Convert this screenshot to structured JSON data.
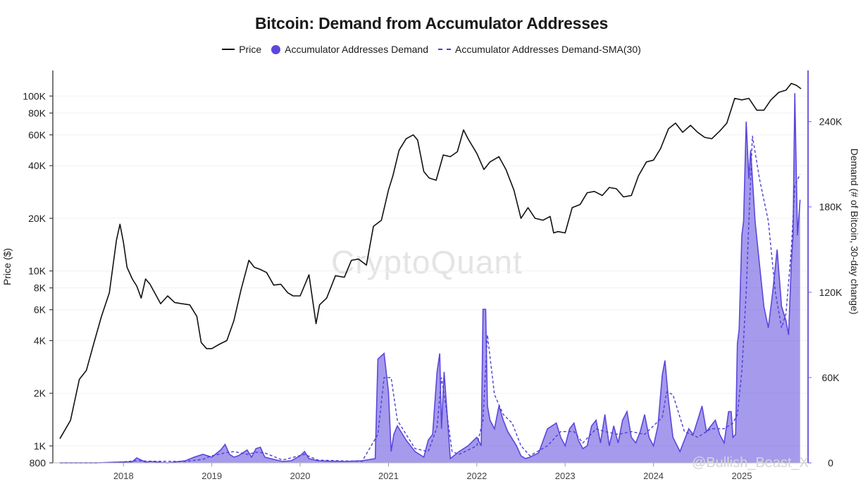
{
  "chart_data": {
    "type": "line",
    "title": "Bitcoin: Demand from Accumulator Addresses",
    "legend": [
      {
        "label": "Price",
        "style": "line",
        "color": "#111111"
      },
      {
        "label": "Accumulator Addresses Demand",
        "style": "area",
        "color": "#5b47dc"
      },
      {
        "label": "Accumulator Addresses Demand-SMA(30)",
        "style": "dashed",
        "color": "#4b3fd6"
      }
    ],
    "legend_position": "top-center",
    "ylabel_left": "Price ($)",
    "ylabel_right": "Demand (# of Bitcoin, 30-day change)",
    "y_left_scale": "log",
    "y_left_ticks": [
      {
        "v": 800,
        "label": "800"
      },
      {
        "v": 1000,
        "label": "1K"
      },
      {
        "v": 2000,
        "label": "2K"
      },
      {
        "v": 4000,
        "label": "4K"
      },
      {
        "v": 6000,
        "label": "6K"
      },
      {
        "v": 8000,
        "label": "8K"
      },
      {
        "v": 10000,
        "label": "10K"
      },
      {
        "v": 20000,
        "label": "20K"
      },
      {
        "v": 40000,
        "label": "40K"
      },
      {
        "v": 60000,
        "label": "60K"
      },
      {
        "v": 80000,
        "label": "80K"
      },
      {
        "v": 100000,
        "label": "100K"
      }
    ],
    "y_left_range": [
      800,
      140000
    ],
    "y_right_ticks": [
      {
        "v": 0,
        "label": "0"
      },
      {
        "v": 60000,
        "label": "60K"
      },
      {
        "v": 120000,
        "label": "120K"
      },
      {
        "v": 180000,
        "label": "180K"
      },
      {
        "v": 240000,
        "label": "240K"
      }
    ],
    "y_right_range": [
      0,
      276000
    ],
    "x_range": [
      2017.2,
      2025.75
    ],
    "x_ticks": [
      {
        "v": 2018,
        "label": "2018"
      },
      {
        "v": 2019,
        "label": "2019"
      },
      {
        "v": 2020,
        "label": "2020"
      },
      {
        "v": 2021,
        "label": "2021"
      },
      {
        "v": 2022,
        "label": "2022"
      },
      {
        "v": 2023,
        "label": "2023"
      },
      {
        "v": 2024,
        "label": "2024"
      },
      {
        "v": 2025,
        "label": "2025"
      }
    ],
    "grid": "horizontal",
    "series": [
      {
        "name": "Price",
        "x": [
          2017.28,
          2017.4,
          2017.5,
          2017.58,
          2017.66,
          2017.75,
          2017.84,
          2017.92,
          2017.96,
          2018.0,
          2018.04,
          2018.1,
          2018.15,
          2018.2,
          2018.25,
          2018.3,
          2018.36,
          2018.42,
          2018.5,
          2018.58,
          2018.66,
          2018.75,
          2018.83,
          2018.88,
          2018.94,
          2019.0,
          2019.08,
          2019.17,
          2019.25,
          2019.33,
          2019.42,
          2019.48,
          2019.55,
          2019.62,
          2019.7,
          2019.78,
          2019.86,
          2019.92,
          2020.0,
          2020.1,
          2020.18,
          2020.22,
          2020.3,
          2020.4,
          2020.5,
          2020.58,
          2020.66,
          2020.75,
          2020.83,
          2020.92,
          2021.0,
          2021.05,
          2021.12,
          2021.2,
          2021.28,
          2021.33,
          2021.4,
          2021.46,
          2021.54,
          2021.62,
          2021.7,
          2021.78,
          2021.85,
          2021.9,
          2022.0,
          2022.08,
          2022.15,
          2022.25,
          2022.33,
          2022.42,
          2022.5,
          2022.58,
          2022.66,
          2022.75,
          2022.83,
          2022.87,
          2022.92,
          2023.0,
          2023.08,
          2023.17,
          2023.25,
          2023.33,
          2023.42,
          2023.5,
          2023.58,
          2023.66,
          2023.75,
          2023.83,
          2023.92,
          2024.0,
          2024.08,
          2024.17,
          2024.25,
          2024.33,
          2024.42,
          2024.5,
          2024.58,
          2024.66,
          2024.75,
          2024.83,
          2024.92,
          2025.0,
          2025.08,
          2025.17,
          2025.25,
          2025.33,
          2025.42,
          2025.5,
          2025.56,
          2025.62,
          2025.67
        ],
        "y": [
          1100,
          1400,
          2400,
          2700,
          3800,
          5500,
          7500,
          15000,
          18500,
          14500,
          10500,
          9000,
          8200,
          7000,
          9000,
          8400,
          7400,
          6500,
          7200,
          6600,
          6500,
          6400,
          5500,
          3900,
          3600,
          3600,
          3800,
          4000,
          5200,
          7800,
          11500,
          10500,
          10200,
          9800,
          8300,
          8400,
          7500,
          7200,
          7200,
          9500,
          5000,
          6400,
          7000,
          9400,
          9200,
          11500,
          11700,
          10800,
          18000,
          19500,
          29000,
          35000,
          49000,
          57000,
          60000,
          56000,
          37000,
          34000,
          33000,
          46000,
          45000,
          48000,
          64000,
          57000,
          47000,
          38000,
          42000,
          45000,
          38000,
          29000,
          20000,
          23000,
          20000,
          19500,
          20500,
          16500,
          16800,
          16500,
          23000,
          24000,
          28000,
          28500,
          27000,
          30000,
          29500,
          26500,
          27000,
          35000,
          42000,
          43000,
          50000,
          65000,
          70000,
          62000,
          68000,
          62000,
          58000,
          57000,
          63000,
          70000,
          97000,
          95000,
          97000,
          83000,
          83000,
          95000,
          105000,
          108000,
          118000,
          115000,
          110000
        ]
      },
      {
        "name": "Accumulator Addresses Demand",
        "x": [
          2017.28,
          2017.7,
          2017.9,
          2018.1,
          2018.15,
          2018.25,
          2018.3,
          2018.5,
          2018.7,
          2018.8,
          2018.9,
          2019.0,
          2019.1,
          2019.15,
          2019.2,
          2019.25,
          2019.3,
          2019.4,
          2019.45,
          2019.5,
          2019.55,
          2019.6,
          2019.7,
          2019.8,
          2019.9,
          2020.0,
          2020.05,
          2020.1,
          2020.2,
          2020.3,
          2020.5,
          2020.7,
          2020.85,
          2020.88,
          2020.95,
          2021.0,
          2021.03,
          2021.06,
          2021.1,
          2021.2,
          2021.3,
          2021.4,
          2021.45,
          2021.5,
          2021.55,
          2021.58,
          2021.6,
          2021.63,
          2021.7,
          2021.8,
          2021.9,
          2022.0,
          2022.05,
          2022.07,
          2022.1,
          2022.12,
          2022.15,
          2022.2,
          2022.25,
          2022.3,
          2022.35,
          2022.45,
          2022.5,
          2022.55,
          2022.6,
          2022.7,
          2022.8,
          2022.9,
          2022.95,
          2023.0,
          2023.05,
          2023.1,
          2023.15,
          2023.2,
          2023.25,
          2023.3,
          2023.35,
          2023.4,
          2023.45,
          2023.5,
          2023.55,
          2023.6,
          2023.65,
          2023.7,
          2023.75,
          2023.8,
          2023.85,
          2023.9,
          2023.95,
          2024.0,
          2024.05,
          2024.1,
          2024.13,
          2024.17,
          2024.22,
          2024.3,
          2024.35,
          2024.4,
          2024.45,
          2024.5,
          2024.55,
          2024.6,
          2024.65,
          2024.7,
          2024.75,
          2024.8,
          2024.85,
          2024.88,
          2024.9,
          2024.93,
          2024.95,
          2024.97,
          2025.0,
          2025.02,
          2025.05,
          2025.08,
          2025.1,
          2025.15,
          2025.2,
          2025.25,
          2025.3,
          2025.35,
          2025.4,
          2025.45,
          2025.5,
          2025.53,
          2025.56,
          2025.58,
          2025.6,
          2025.63,
          2025.66
        ],
        "y": [
          0,
          0,
          500,
          800,
          3500,
          500,
          1000,
          0,
          1500,
          4000,
          6000,
          4000,
          9000,
          13000,
          6000,
          4000,
          5000,
          9000,
          4000,
          10000,
          11000,
          4000,
          2500,
          1000,
          1500,
          5000,
          8000,
          3000,
          1500,
          1200,
          1000,
          1500,
          3000,
          73000,
          77000,
          50000,
          8000,
          20000,
          26000,
          16000,
          8000,
          4000,
          16000,
          20000,
          64000,
          77000,
          24000,
          64000,
          3000,
          8000,
          12000,
          18000,
          12000,
          108000,
          108000,
          40000,
          30000,
          24000,
          40000,
          30000,
          22000,
          12000,
          5000,
          3000,
          4000,
          7000,
          24000,
          28000,
          18000,
          12000,
          24000,
          28000,
          16000,
          10000,
          12000,
          26000,
          30000,
          14000,
          34000,
          12000,
          26000,
          14000,
          30000,
          36000,
          18000,
          14000,
          22000,
          34000,
          18000,
          12000,
          26000,
          62000,
          72000,
          44000,
          18000,
          8000,
          16000,
          24000,
          20000,
          30000,
          40000,
          22000,
          26000,
          30000,
          20000,
          14000,
          36000,
          36000,
          18000,
          20000,
          84000,
          94000,
          160000,
          170000,
          240000,
          200000,
          220000,
          170000,
          140000,
          110000,
          95000,
          120000,
          150000,
          110000,
          100000,
          90000,
          140000,
          160000,
          260000,
          160000,
          185000
        ]
      },
      {
        "name": "Accumulator Addresses Demand-SMA(30)",
        "x": [
          2017.28,
          2017.7,
          2017.9,
          2018.15,
          2018.3,
          2018.7,
          2018.9,
          2019.0,
          2019.15,
          2019.25,
          2019.4,
          2019.5,
          2019.6,
          2019.8,
          2020.05,
          2020.2,
          2020.7,
          2020.88,
          2020.95,
          2021.03,
          2021.1,
          2021.2,
          2021.3,
          2021.45,
          2021.55,
          2021.6,
          2021.65,
          2021.72,
          2021.8,
          2022.0,
          2022.07,
          2022.12,
          2022.2,
          2022.3,
          2022.4,
          2022.5,
          2022.6,
          2022.8,
          2022.95,
          2023.1,
          2023.2,
          2023.35,
          2023.45,
          2023.6,
          2023.75,
          2023.9,
          2024.1,
          2024.15,
          2024.22,
          2024.35,
          2024.5,
          2024.65,
          2024.8,
          2024.9,
          2024.95,
          2025.0,
          2025.05,
          2025.08,
          2025.12,
          2025.2,
          2025.3,
          2025.38,
          2025.45,
          2025.5,
          2025.56,
          2025.6,
          2025.66
        ],
        "y": [
          0,
          0,
          300,
          1500,
          1200,
          1000,
          2500,
          5000,
          7000,
          8000,
          6000,
          7500,
          7000,
          2000,
          6000,
          2000,
          1000,
          20000,
          60000,
          60000,
          30000,
          20000,
          10000,
          8000,
          25000,
          60000,
          40000,
          8000,
          6000,
          12000,
          30000,
          90000,
          48000,
          34000,
          28000,
          12000,
          5000,
          12000,
          22000,
          22000,
          14000,
          24000,
          22000,
          20000,
          22000,
          20000,
          32000,
          50000,
          48000,
          22000,
          18000,
          24000,
          24000,
          28000,
          34000,
          64000,
          120000,
          170000,
          230000,
          200000,
          170000,
          120000,
          95000,
          105000,
          150000,
          195000,
          203000
        ]
      }
    ]
  },
  "watermark": "CryptoQuant",
  "credit": "@Bullish_Beast_X"
}
